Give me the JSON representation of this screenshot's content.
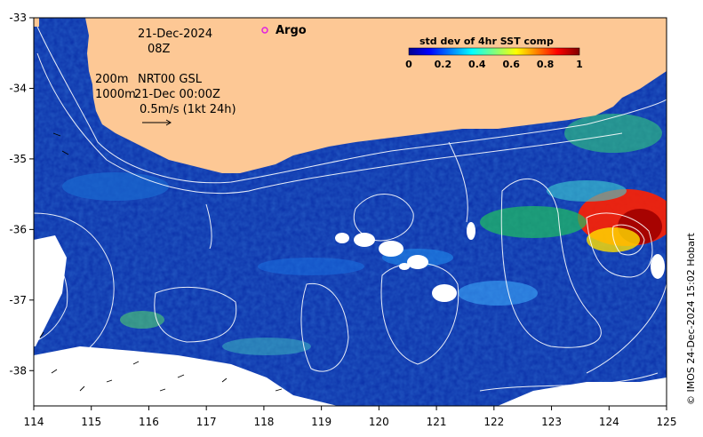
{
  "map": {
    "date_line": "21-Dec-2024",
    "hour_line": "08Z",
    "depth_label_1": "200m",
    "depth_label_2": "1000m",
    "altimetry_label": "NRT00 GSL",
    "altimetry_time": "21-Dec 00:00Z",
    "velocity_scale": "0.5m/s (1kt 24h)",
    "argo_label": "Argo",
    "credit": "© IMOS 24-Dec-2024 15:02 Hobart",
    "colors": {
      "land": "#fdc895",
      "ocean_base": "#0a2fa8",
      "argo_marker": "#e020e0"
    }
  },
  "colorbar": {
    "title": "std dev of 4hr SST comp",
    "ticks": [
      "0",
      "0.2",
      "0.4",
      "0.6",
      "0.8",
      "1"
    ],
    "range": [
      0,
      1
    ],
    "colormap": "jet"
  },
  "axes": {
    "x_ticks": [
      "114",
      "115",
      "116",
      "117",
      "118",
      "119",
      "120",
      "121",
      "122",
      "123",
      "124",
      "125"
    ],
    "y_ticks": [
      "-33",
      "-34",
      "-35",
      "-36",
      "-37",
      "-38"
    ],
    "x_range": [
      114,
      125
    ],
    "y_range": [
      -38.5,
      -33
    ]
  }
}
